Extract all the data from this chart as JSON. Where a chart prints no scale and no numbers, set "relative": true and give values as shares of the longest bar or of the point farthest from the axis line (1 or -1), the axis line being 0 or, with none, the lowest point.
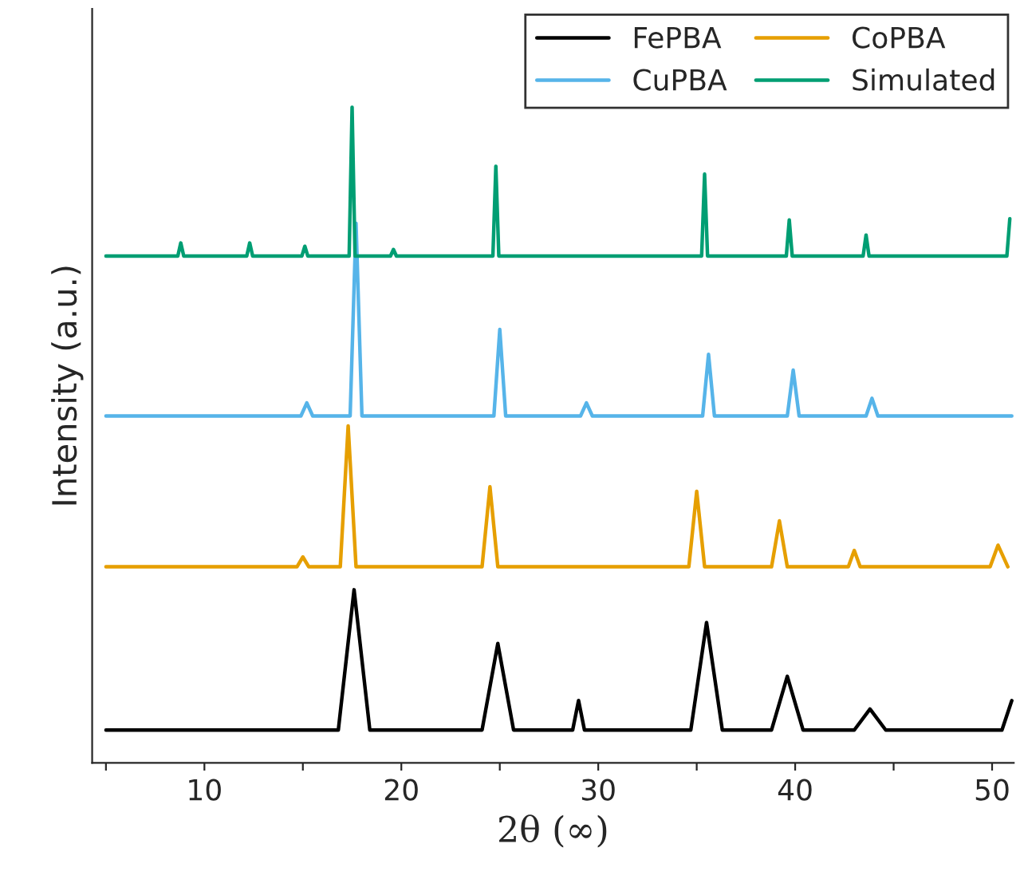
{
  "chart_data": {
    "type": "line",
    "relative": true,
    "xlabel": "2θ (∞)",
    "ylabel": "Intensity (a.u.)",
    "xlim": [
      4.3,
      51.1
    ],
    "xticks": [
      {
        "value": 5,
        "label": null
      },
      10,
      {
        "value": 15,
        "label": null
      },
      20,
      {
        "value": 25,
        "label": null
      },
      30,
      {
        "value": 35,
        "label": null
      },
      40,
      {
        "value": 45,
        "label": null
      },
      50
    ],
    "legend": "top right",
    "tick_labels": "x",
    "line_style": "solid",
    "marker": "none",
    "grid": false,
    "series": [
      {
        "name": "FePBA",
        "color": "#000000",
        "x": [
          5,
          16.8,
          17.6,
          18.4,
          24.1,
          24.9,
          25.7,
          28.7,
          29.0,
          29.3,
          34.7,
          35.5,
          36.3,
          38.8,
          39.6,
          40.4,
          43.0,
          43.8,
          44.6,
          50.5,
          51.0
        ],
        "values": [
          0.05,
          0.05,
          0.264,
          0.05,
          0.05,
          0.182,
          0.05,
          0.05,
          0.095,
          0.05,
          0.05,
          0.214,
          0.05,
          0.05,
          0.132,
          0.05,
          0.05,
          0.082,
          0.05,
          0.05,
          0.095
        ]
      },
      {
        "name": "CoPBA",
        "color": "#e69f00",
        "x": [
          5,
          14.7,
          15.0,
          15.3,
          16.9,
          17.3,
          17.7,
          24.1,
          24.5,
          24.9,
          34.6,
          35.0,
          35.4,
          38.8,
          39.2,
          39.6,
          42.7,
          43.0,
          43.3,
          49.9,
          50.3,
          50.8
        ],
        "values": [
          0.299,
          0.299,
          0.314,
          0.299,
          0.299,
          0.514,
          0.299,
          0.299,
          0.421,
          0.299,
          0.299,
          0.414,
          0.299,
          0.299,
          0.369,
          0.299,
          0.299,
          0.324,
          0.299,
          0.299,
          0.332,
          0.299
        ]
      },
      {
        "name": "CuPBA",
        "color": "#56b4e9",
        "x": [
          5,
          14.9,
          15.2,
          15.5,
          17.4,
          17.7,
          18.0,
          24.7,
          25.0,
          25.3,
          29.1,
          29.4,
          29.7,
          35.3,
          35.6,
          35.9,
          39.6,
          39.9,
          40.2,
          43.6,
          43.9,
          44.2,
          51.0
        ],
        "values": [
          0.529,
          0.529,
          0.549,
          0.529,
          0.529,
          0.823,
          0.529,
          0.529,
          0.661,
          0.529,
          0.529,
          0.549,
          0.529,
          0.529,
          0.623,
          0.529,
          0.529,
          0.599,
          0.529,
          0.529,
          0.556,
          0.529,
          0.529
        ]
      },
      {
        "name": "Simulated",
        "color": "#009e73",
        "x": [
          5,
          8.65,
          8.8,
          8.95,
          12.15,
          12.3,
          12.45,
          14.95,
          15.1,
          15.25,
          17.35,
          17.5,
          17.65,
          19.45,
          19.6,
          19.75,
          24.65,
          24.8,
          24.95,
          35.25,
          35.4,
          35.55,
          39.55,
          39.7,
          39.85,
          43.45,
          43.6,
          43.75,
          50.75,
          50.9
        ],
        "values": [
          0.773,
          0.773,
          0.793,
          0.773,
          0.773,
          0.793,
          0.773,
          0.773,
          0.788,
          0.773,
          0.773,
          1.0,
          0.773,
          0.773,
          0.783,
          0.773,
          0.773,
          0.91,
          0.773,
          0.773,
          0.898,
          0.773,
          0.773,
          0.828,
          0.773,
          0.773,
          0.805,
          0.773,
          0.773,
          0.83
        ]
      }
    ]
  }
}
